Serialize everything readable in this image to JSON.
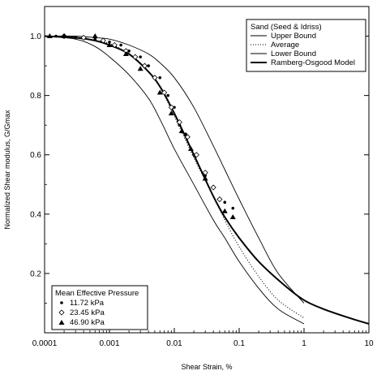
{
  "chart_data": {
    "type": "line",
    "xlabel": "Shear Strain, %",
    "ylabel": "Normalized Shear modulus, G/Gmax",
    "x_scale": "log",
    "xlim": [
      0.0001,
      10
    ],
    "ylim": [
      0,
      1.1
    ],
    "x_ticks": [
      "0.0001",
      "0.001",
      "0.01",
      "0.1",
      "1",
      "10"
    ],
    "y_ticks": [
      "0.2",
      "0.4",
      "0.6",
      "0.8",
      "1.0"
    ],
    "grid": false,
    "legend_top": {
      "title": "Sand (Seed & Idriss)",
      "placement": "top-right",
      "entries": [
        "Upper Bound",
        "Average",
        "Lower Bound",
        "Ramberg-Osgood Model"
      ]
    },
    "legend_bottom": {
      "title": "Mean Effective Pressure",
      "placement": "bottom-left",
      "entries": [
        "11.72 kPa",
        "23.45 kPa",
        "46.90 kPa"
      ]
    },
    "series": [
      {
        "style": "thin-solid",
        "x": [
          0.0001,
          0.0003,
          0.0006,
          0.001,
          0.002,
          0.004,
          0.006,
          0.01,
          0.02,
          0.04,
          0.06,
          0.1,
          0.2,
          0.4,
          1
        ],
        "y": [
          1.0,
          1.0,
          0.995,
          0.99,
          0.97,
          0.94,
          0.91,
          0.86,
          0.76,
          0.63,
          0.55,
          0.45,
          0.32,
          0.2,
          0.1
        ]
      },
      {
        "style": "dotted",
        "x": [
          0.0001,
          0.0003,
          0.0006,
          0.001,
          0.002,
          0.004,
          0.006,
          0.01,
          0.02,
          0.04,
          0.06,
          0.1,
          0.2,
          0.4,
          1
        ],
        "y": [
          1.0,
          0.995,
          0.985,
          0.975,
          0.94,
          0.88,
          0.83,
          0.73,
          0.59,
          0.46,
          0.38,
          0.29,
          0.19,
          0.11,
          0.05
        ]
      },
      {
        "style": "thin-solid",
        "x": [
          0.0001,
          0.0003,
          0.0006,
          0.001,
          0.002,
          0.004,
          0.006,
          0.01,
          0.02,
          0.04,
          0.06,
          0.1,
          0.2,
          0.4,
          1
        ],
        "y": [
          1.0,
          0.99,
          0.965,
          0.93,
          0.87,
          0.79,
          0.72,
          0.62,
          0.5,
          0.38,
          0.32,
          0.24,
          0.15,
          0.08,
          0.03
        ]
      },
      {
        "style": "thick-solid",
        "x": [
          0.0001,
          0.0003,
          0.0006,
          0.001,
          0.002,
          0.004,
          0.006,
          0.01,
          0.02,
          0.04,
          0.06,
          0.1,
          0.2,
          0.5,
          1,
          2,
          5,
          10
        ],
        "y": [
          1.0,
          0.995,
          0.985,
          0.97,
          0.94,
          0.88,
          0.83,
          0.74,
          0.6,
          0.46,
          0.39,
          0.32,
          0.24,
          0.16,
          0.11,
          0.08,
          0.05,
          0.03
        ]
      },
      {
        "marker": "dot",
        "x": [
          0.00015,
          0.0003,
          0.0006,
          0.001,
          0.0015,
          0.002,
          0.003,
          0.004,
          0.006,
          0.008,
          0.01,
          0.012,
          0.015,
          0.02,
          0.03,
          0.04,
          0.06,
          0.08
        ],
        "y": [
          1.0,
          0.995,
          0.99,
          0.98,
          0.97,
          0.95,
          0.93,
          0.9,
          0.86,
          0.8,
          0.76,
          0.7,
          0.67,
          0.6,
          0.53,
          0.49,
          0.44,
          0.42
        ]
      },
      {
        "marker": "diamond",
        "x": [
          0.0002,
          0.0004,
          0.0008,
          0.0012,
          0.0018,
          0.0025,
          0.0035,
          0.005,
          0.007,
          0.009,
          0.012,
          0.016,
          0.022,
          0.03,
          0.04,
          0.05
        ],
        "y": [
          1.0,
          0.995,
          0.985,
          0.97,
          0.95,
          0.93,
          0.9,
          0.86,
          0.81,
          0.76,
          0.71,
          0.66,
          0.6,
          0.54,
          0.49,
          0.45
        ]
      },
      {
        "marker": "triangle",
        "x": [
          0.00012,
          0.0002,
          0.0006,
          0.001,
          0.0018,
          0.003,
          0.006,
          0.009,
          0.013,
          0.018,
          0.03,
          0.06,
          0.08
        ],
        "y": [
          1.0,
          1.0,
          1.0,
          0.97,
          0.94,
          0.89,
          0.81,
          0.74,
          0.68,
          0.62,
          0.52,
          0.41,
          0.39
        ]
      }
    ]
  }
}
